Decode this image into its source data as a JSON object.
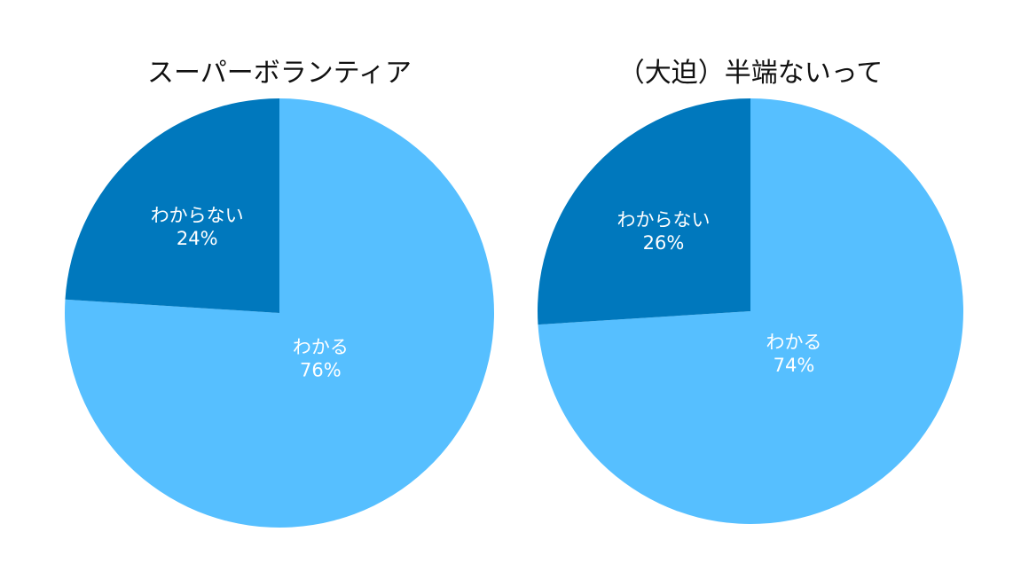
{
  "chart_data": [
    {
      "type": "pie",
      "title": "スーパーボランティア",
      "categories": [
        "わかる",
        "わからない"
      ],
      "values": [
        76,
        24
      ],
      "labels": [
        "76%",
        "24%"
      ],
      "colors": [
        "#56bfff",
        "#0078bd"
      ],
      "start_angle_deg": 0,
      "direction": "clockwise"
    },
    {
      "type": "pie",
      "title": "（大迫）半端ないって",
      "categories": [
        "わかる",
        "わからない"
      ],
      "values": [
        74,
        26
      ],
      "labels": [
        "74%",
        "26%"
      ],
      "colors": [
        "#56bfff",
        "#0078bd"
      ],
      "start_angle_deg": 0,
      "direction": "clockwise"
    }
  ]
}
